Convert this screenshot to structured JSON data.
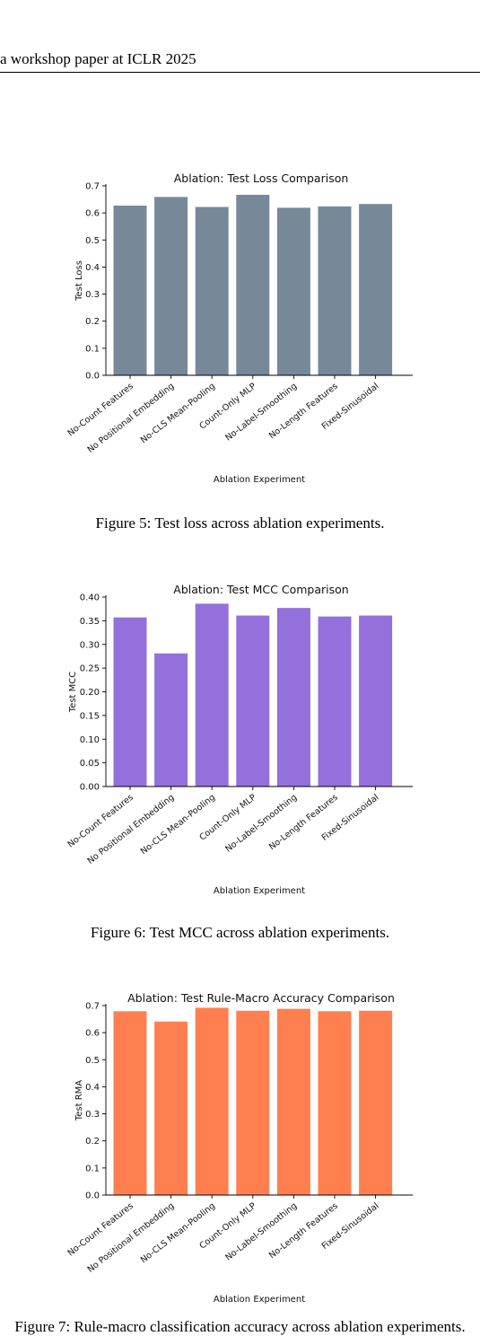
{
  "header": {
    "text": "a workshop paper at ICLR 2025"
  },
  "figures": [
    {
      "caption": "Figure 5: Test loss across ablation experiments.",
      "chart_data": {
        "type": "bar",
        "title": "Ablation: Test Loss Comparison",
        "xlabel": "Ablation Experiment",
        "ylabel": "Test Loss",
        "categories": [
          "No-Count Features",
          "No Positional Embedding",
          "No-CLS Mean-Pooling",
          "Count-Only MLP",
          "No-Label-Smoothing",
          "No-Length Features",
          "Fixed-Sinusoidal"
        ],
        "values": [
          0.627,
          0.659,
          0.622,
          0.667,
          0.619,
          0.624,
          0.633
        ],
        "ylim": [
          0,
          0.7
        ],
        "yticks": [
          "0.0",
          "0.1",
          "0.2",
          "0.3",
          "0.4",
          "0.5",
          "0.6",
          "0.7"
        ],
        "color": "#778899",
        "grid": false
      }
    },
    {
      "caption": "Figure 6: Test MCC across ablation experiments.",
      "chart_data": {
        "type": "bar",
        "title": "Ablation: Test MCC Comparison",
        "xlabel": "Ablation Experiment",
        "ylabel": "Test MCC",
        "categories": [
          "No-Count Features",
          "No Positional Embedding",
          "No-CLS Mean-Pooling",
          "Count-Only MLP",
          "No-Label-Smoothing",
          "No-Length Features",
          "Fixed-Sinusoidal"
        ],
        "values": [
          0.357,
          0.281,
          0.386,
          0.361,
          0.377,
          0.359,
          0.361
        ],
        "ylim": [
          0,
          0.4
        ],
        "yticks": [
          "0.00",
          "0.05",
          "0.10",
          "0.15",
          "0.20",
          "0.25",
          "0.30",
          "0.35",
          "0.40"
        ],
        "color": "#9370DB",
        "grid": false
      }
    },
    {
      "caption": "Figure 7: Rule-macro classification accuracy across ablation experiments.",
      "chart_data": {
        "type": "bar",
        "title": "Ablation: Test Rule-Macro Accuracy Comparison",
        "xlabel": "Ablation Experiment",
        "ylabel": "Test RMA",
        "categories": [
          "No-Count Features",
          "No Positional Embedding",
          "No-CLS Mean-Pooling",
          "Count-Only MLP",
          "No-Label-Smoothing",
          "No-Length Features",
          "Fixed-Sinusoidal"
        ],
        "values": [
          0.679,
          0.641,
          0.692,
          0.681,
          0.688,
          0.679,
          0.681
        ],
        "ylim": [
          0,
          0.7
        ],
        "yticks": [
          "0.0",
          "0.1",
          "0.2",
          "0.3",
          "0.4",
          "0.5",
          "0.6",
          "0.7"
        ],
        "color": "#FF7F50",
        "grid": false
      }
    }
  ]
}
